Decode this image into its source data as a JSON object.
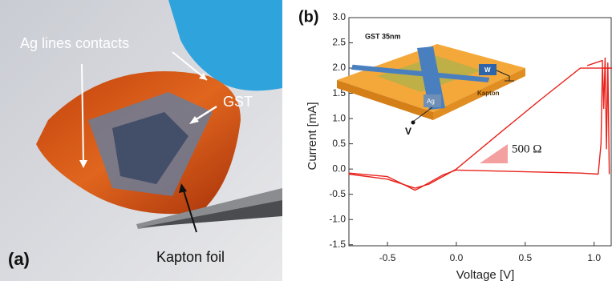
{
  "panel_a": {
    "label": "(a)",
    "annotations": [
      "Ag lines contacts",
      "GST",
      "Kapton foil"
    ]
  },
  "chart_data": {
    "type": "line",
    "panel_label": "(b)",
    "x_label": "Voltage [V]",
    "y_label": "Current [mA]",
    "annotation": "500 Ω",
    "inset_labels": [
      "GST 35nm",
      "W",
      "Ag",
      "V",
      "Kapton"
    ],
    "xlim": [
      -0.78,
      1.13
    ],
    "ylim": [
      -1.52,
      3.0
    ],
    "xticks": [
      -0.5,
      {
        "value": 0,
        "label": "0.0"
      },
      0.5,
      {
        "value": 1,
        "label": "1.0"
      }
    ],
    "yticks": [
      {
        "value": 3,
        "label": "3.0"
      },
      2.5,
      {
        "value": 2,
        "label": "2.0"
      },
      1.5,
      {
        "value": 1,
        "label": "1.0"
      },
      0.5,
      {
        "value": 0,
        "label": "0.0"
      },
      -0.5,
      {
        "value": -1,
        "label": "-1.0"
      },
      -1.5
    ],
    "grid": false,
    "series": [
      {
        "color": "#e8231c",
        "x": [
          -0.78,
          -0.5,
          -0.35,
          -0.3,
          -0.25,
          -0.1,
          0.0,
          0.3,
          0.6,
          0.9,
          1.03,
          1.05,
          1.06,
          1.1,
          1.13
        ],
        "values": [
          -0.08,
          -0.15,
          -0.35,
          -0.42,
          -0.35,
          -0.12,
          -0.02,
          -0.04,
          -0.06,
          -0.08,
          -0.1,
          0.5,
          2.0,
          2.0,
          2.0
        ]
      },
      {
        "color": "#e8231c",
        "x": [
          1.13,
          0.9,
          0.6,
          0.3,
          0.0,
          -0.2,
          -0.3,
          -0.5,
          -0.78
        ],
        "values": [
          2.0,
          2.0,
          1.35,
          0.68,
          0.0,
          -0.3,
          -0.38,
          -0.2,
          -0.1
        ]
      },
      {
        "color": "#e8231c",
        "x": [
          0.95,
          1.06,
          1.07,
          1.08,
          1.09,
          1.1,
          1.11
        ],
        "values": [
          2.05,
          2.15,
          1.2,
          2.2,
          0.4,
          2.1,
          -0.1
        ]
      }
    ]
  }
}
